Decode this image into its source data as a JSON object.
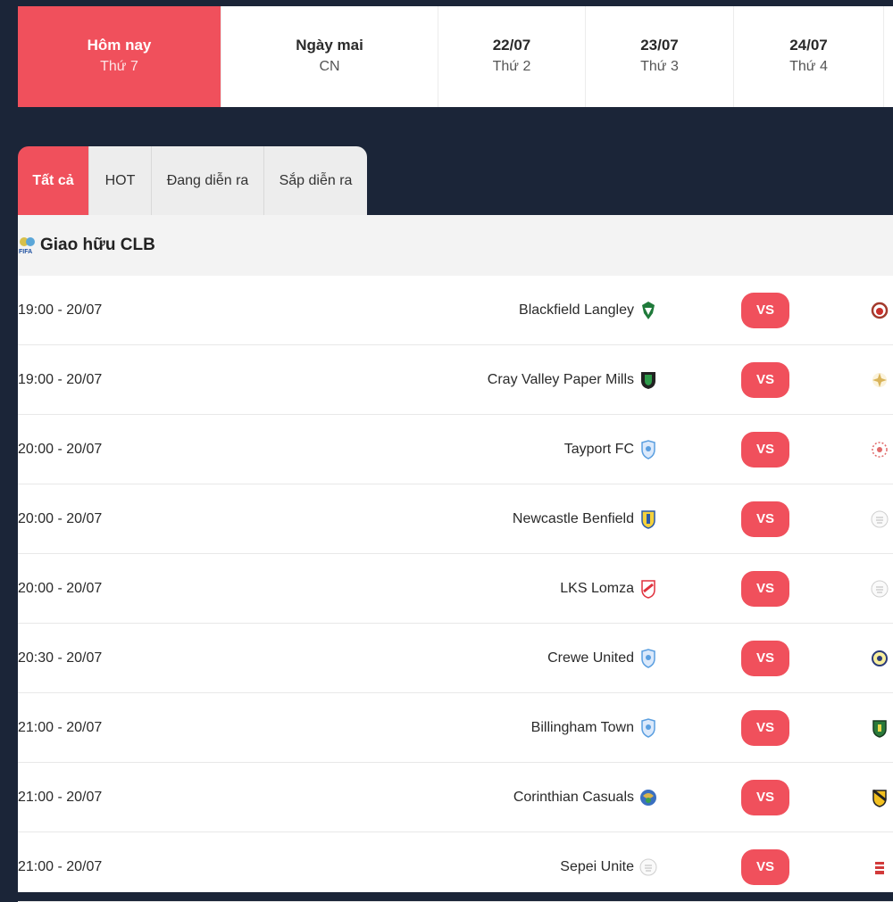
{
  "date_tabs": [
    {
      "day": "Hôm nay",
      "weekday": "Thứ 7"
    },
    {
      "day": "Ngày mai",
      "weekday": "CN"
    },
    {
      "day": "22/07",
      "weekday": "Thứ 2"
    },
    {
      "day": "23/07",
      "weekday": "Thứ 3"
    },
    {
      "day": "24/07",
      "weekday": "Thứ 4"
    }
  ],
  "filter_tabs": [
    "Tất cả",
    "HOT",
    "Đang diễn ra",
    "Sắp diễn ra"
  ],
  "league": {
    "name": "Giao hữu CLB",
    "icon": "fifa-icon"
  },
  "vs_label": "VS",
  "matches": [
    {
      "time": "19:00 - 20/07",
      "home": "Blackfield Langley",
      "home_icon": "blackfield-langley-crest-icon",
      "away_icon": "away-team-crest-icon"
    },
    {
      "time": "19:00 - 20/07",
      "home": "Cray Valley Paper Mills",
      "home_icon": "cray-valley-crest-icon",
      "away_icon": "away-team-crest-icon"
    },
    {
      "time": "20:00 - 20/07",
      "home": "Tayport FC",
      "home_icon": "default-team-crest-icon",
      "away_icon": "away-team-crest-icon"
    },
    {
      "time": "20:00 - 20/07",
      "home": "Newcastle Benfield",
      "home_icon": "newcastle-benfield-crest-icon",
      "away_icon": "default-crest-icon"
    },
    {
      "time": "20:00 - 20/07",
      "home": "LKS Lomza",
      "home_icon": "lks-lomza-crest-icon",
      "away_icon": "default-crest-icon"
    },
    {
      "time": "20:30 - 20/07",
      "home": "Crewe United",
      "home_icon": "default-team-crest-icon",
      "away_icon": "away-team-crest-icon"
    },
    {
      "time": "21:00 - 20/07",
      "home": "Billingham Town",
      "home_icon": "default-team-crest-icon",
      "away_icon": "away-team-crest-icon"
    },
    {
      "time": "21:00 - 20/07",
      "home": "Corinthian Casuals",
      "home_icon": "corinthian-casuals-crest-icon",
      "away_icon": "away-team-crest-icon"
    },
    {
      "time": "21:00 - 20/07",
      "home": "Sepei Unite",
      "home_icon": "default-crest-icon",
      "away_icon": "away-team-crest-icon"
    }
  ],
  "colors": {
    "accent": "#f0505c",
    "background": "#1b2538"
  }
}
